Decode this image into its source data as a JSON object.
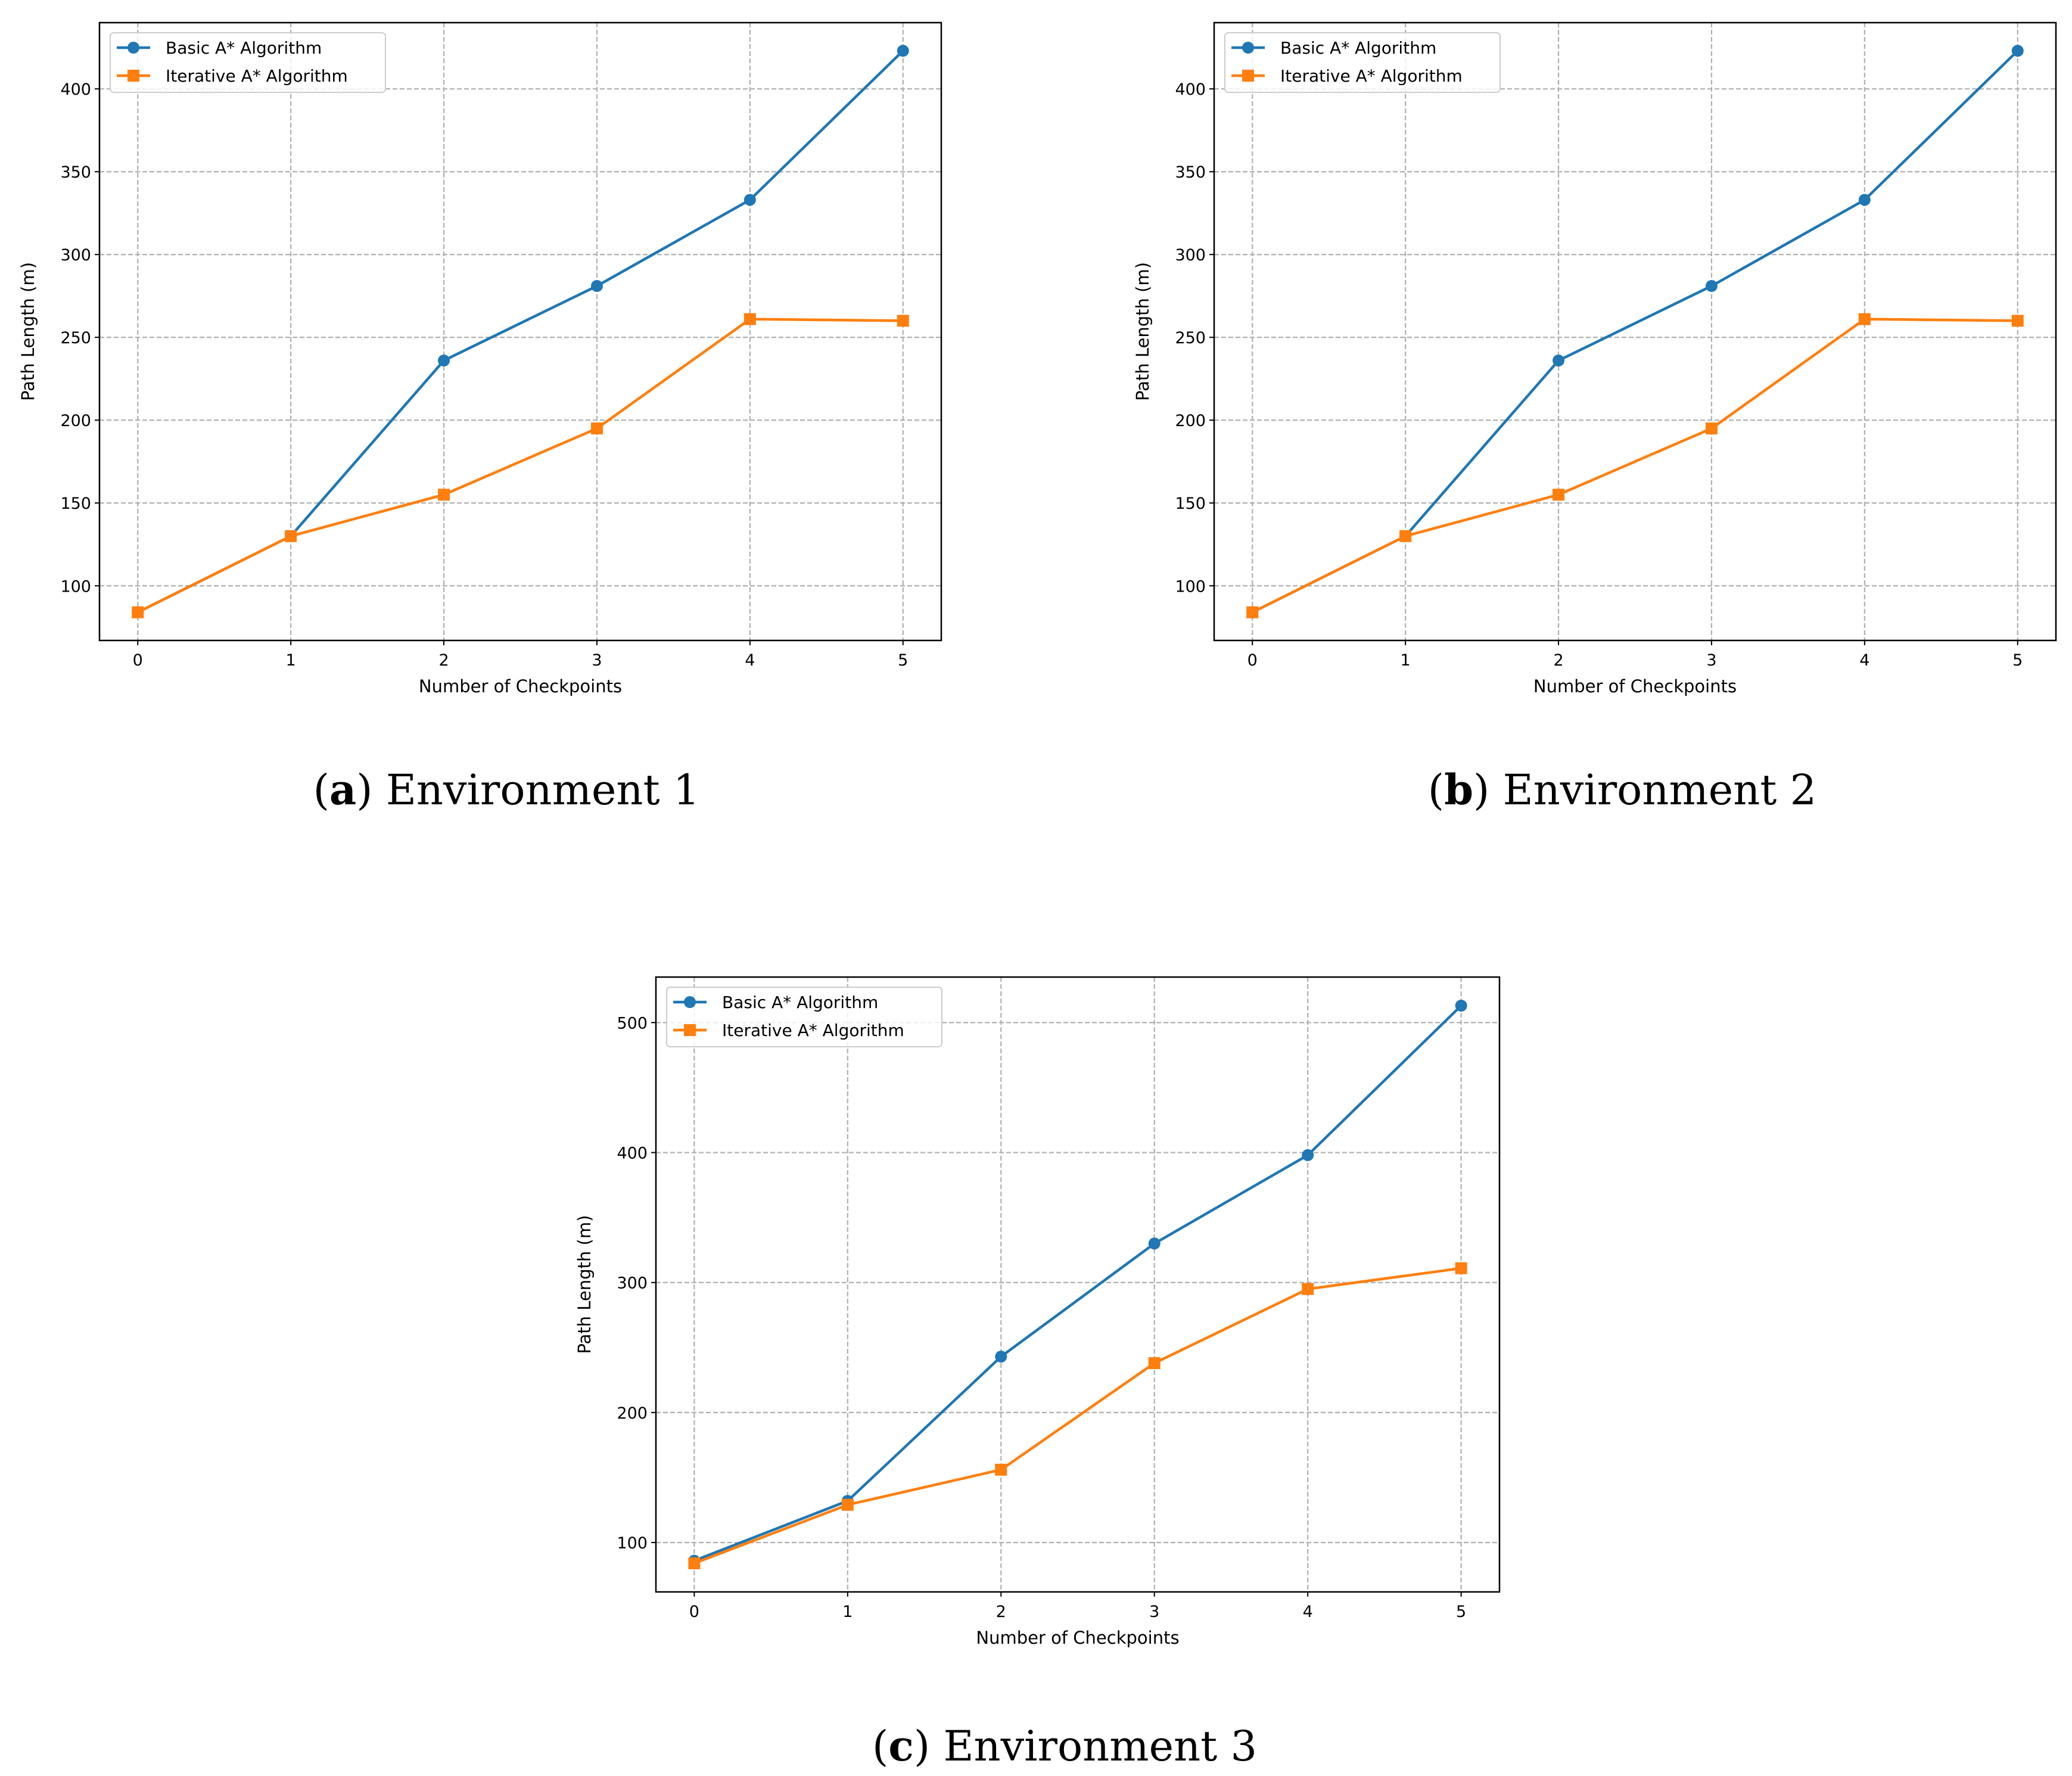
{
  "chart_data": [
    {
      "type": "line",
      "caption": {
        "label": "a",
        "text": "Environment 1"
      },
      "xlabel": "Number of Checkpoints",
      "ylabel": "Path Length (m)",
      "x": [
        0,
        1,
        2,
        3,
        4,
        5
      ],
      "xlim": [
        -0.25,
        5.25
      ],
      "ylim": [
        67,
        440
      ],
      "xticks": [
        0,
        1,
        2,
        3,
        4,
        5
      ],
      "yticks": [
        100,
        150,
        200,
        250,
        300,
        350,
        400
      ],
      "grid": true,
      "legend": "top-left",
      "series": [
        {
          "name": "Basic A* Algorithm",
          "color": "#1f77b4",
          "marker": "circle",
          "values": [
            84,
            130,
            236,
            281,
            333,
            423
          ]
        },
        {
          "name": "Iterative A* Algorithm",
          "color": "#ff7f0e",
          "marker": "square",
          "values": [
            84,
            130,
            155,
            195,
            261,
            260
          ]
        }
      ]
    },
    {
      "type": "line",
      "caption": {
        "label": "b",
        "text": "Environment 2"
      },
      "xlabel": "Number of Checkpoints",
      "ylabel": "Path Length (m)",
      "x": [
        0,
        1,
        2,
        3,
        4,
        5
      ],
      "xlim": [
        -0.25,
        5.25
      ],
      "ylim": [
        67,
        440
      ],
      "xticks": [
        0,
        1,
        2,
        3,
        4,
        5
      ],
      "yticks": [
        100,
        150,
        200,
        250,
        300,
        350,
        400
      ],
      "grid": true,
      "legend": "top-left",
      "series": [
        {
          "name": "Basic A* Algorithm",
          "color": "#1f77b4",
          "marker": "circle",
          "values": [
            84,
            130,
            236,
            281,
            333,
            423
          ]
        },
        {
          "name": "Iterative A* Algorithm",
          "color": "#ff7f0e",
          "marker": "square",
          "values": [
            84,
            130,
            155,
            195,
            261,
            260
          ]
        }
      ]
    },
    {
      "type": "line",
      "caption": {
        "label": "c",
        "text": "Environment 3"
      },
      "xlabel": "Number of Checkpoints",
      "ylabel": "Path Length (m)",
      "x": [
        0,
        1,
        2,
        3,
        4,
        5
      ],
      "xlim": [
        -0.25,
        5.25
      ],
      "ylim": [
        62,
        535
      ],
      "xticks": [
        0,
        1,
        2,
        3,
        4,
        5
      ],
      "yticks": [
        100,
        200,
        300,
        400,
        500
      ],
      "grid": true,
      "legend": "top-left",
      "series": [
        {
          "name": "Basic A* Algorithm",
          "color": "#1f77b4",
          "marker": "circle",
          "values": [
            86,
            132,
            243,
            330,
            398,
            513
          ]
        },
        {
          "name": "Iterative A* Algorithm",
          "color": "#ff7f0e",
          "marker": "square",
          "values": [
            84,
            129,
            156,
            238,
            295,
            311
          ]
        }
      ]
    }
  ]
}
